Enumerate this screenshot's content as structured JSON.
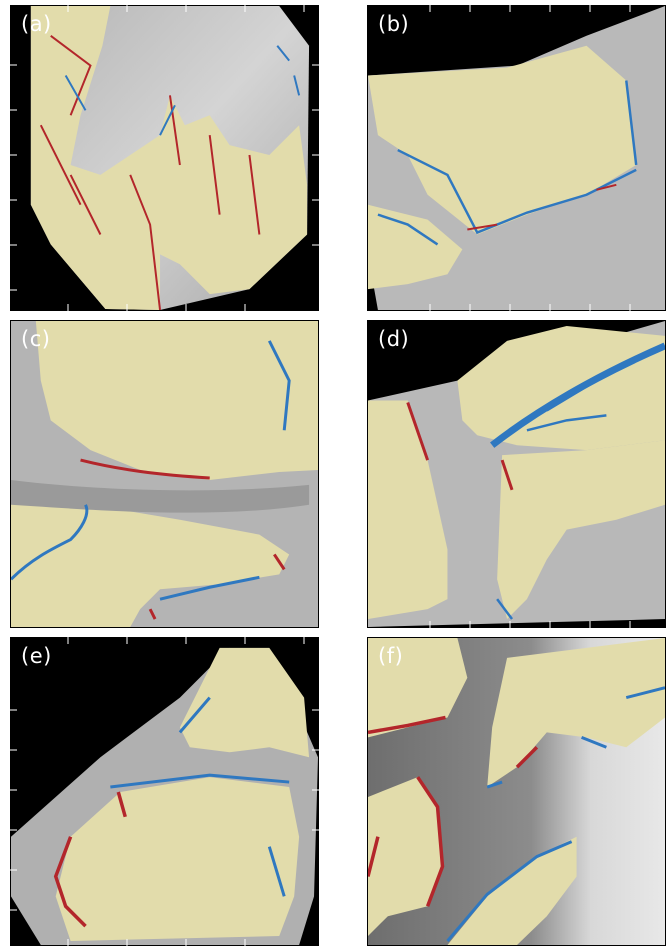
{
  "figure": {
    "panels": [
      {
        "id": "a",
        "label": "(a)"
      },
      {
        "id": "b",
        "label": "(b)"
      },
      {
        "id": "c",
        "label": "(c)"
      },
      {
        "id": "d",
        "label": "(d)"
      },
      {
        "id": "e",
        "label": "(e)"
      },
      {
        "id": "f",
        "label": "(f)"
      }
    ],
    "colors": {
      "marsh_platform": "#e2dcab",
      "hillshade_light": "#c9c9c9",
      "hillshade_dark": "#8a8a8a",
      "outside": "#000000",
      "blue_edge": "#2f78c0",
      "red_edge": "#b3262b",
      "tick": "#ffffff"
    }
  }
}
